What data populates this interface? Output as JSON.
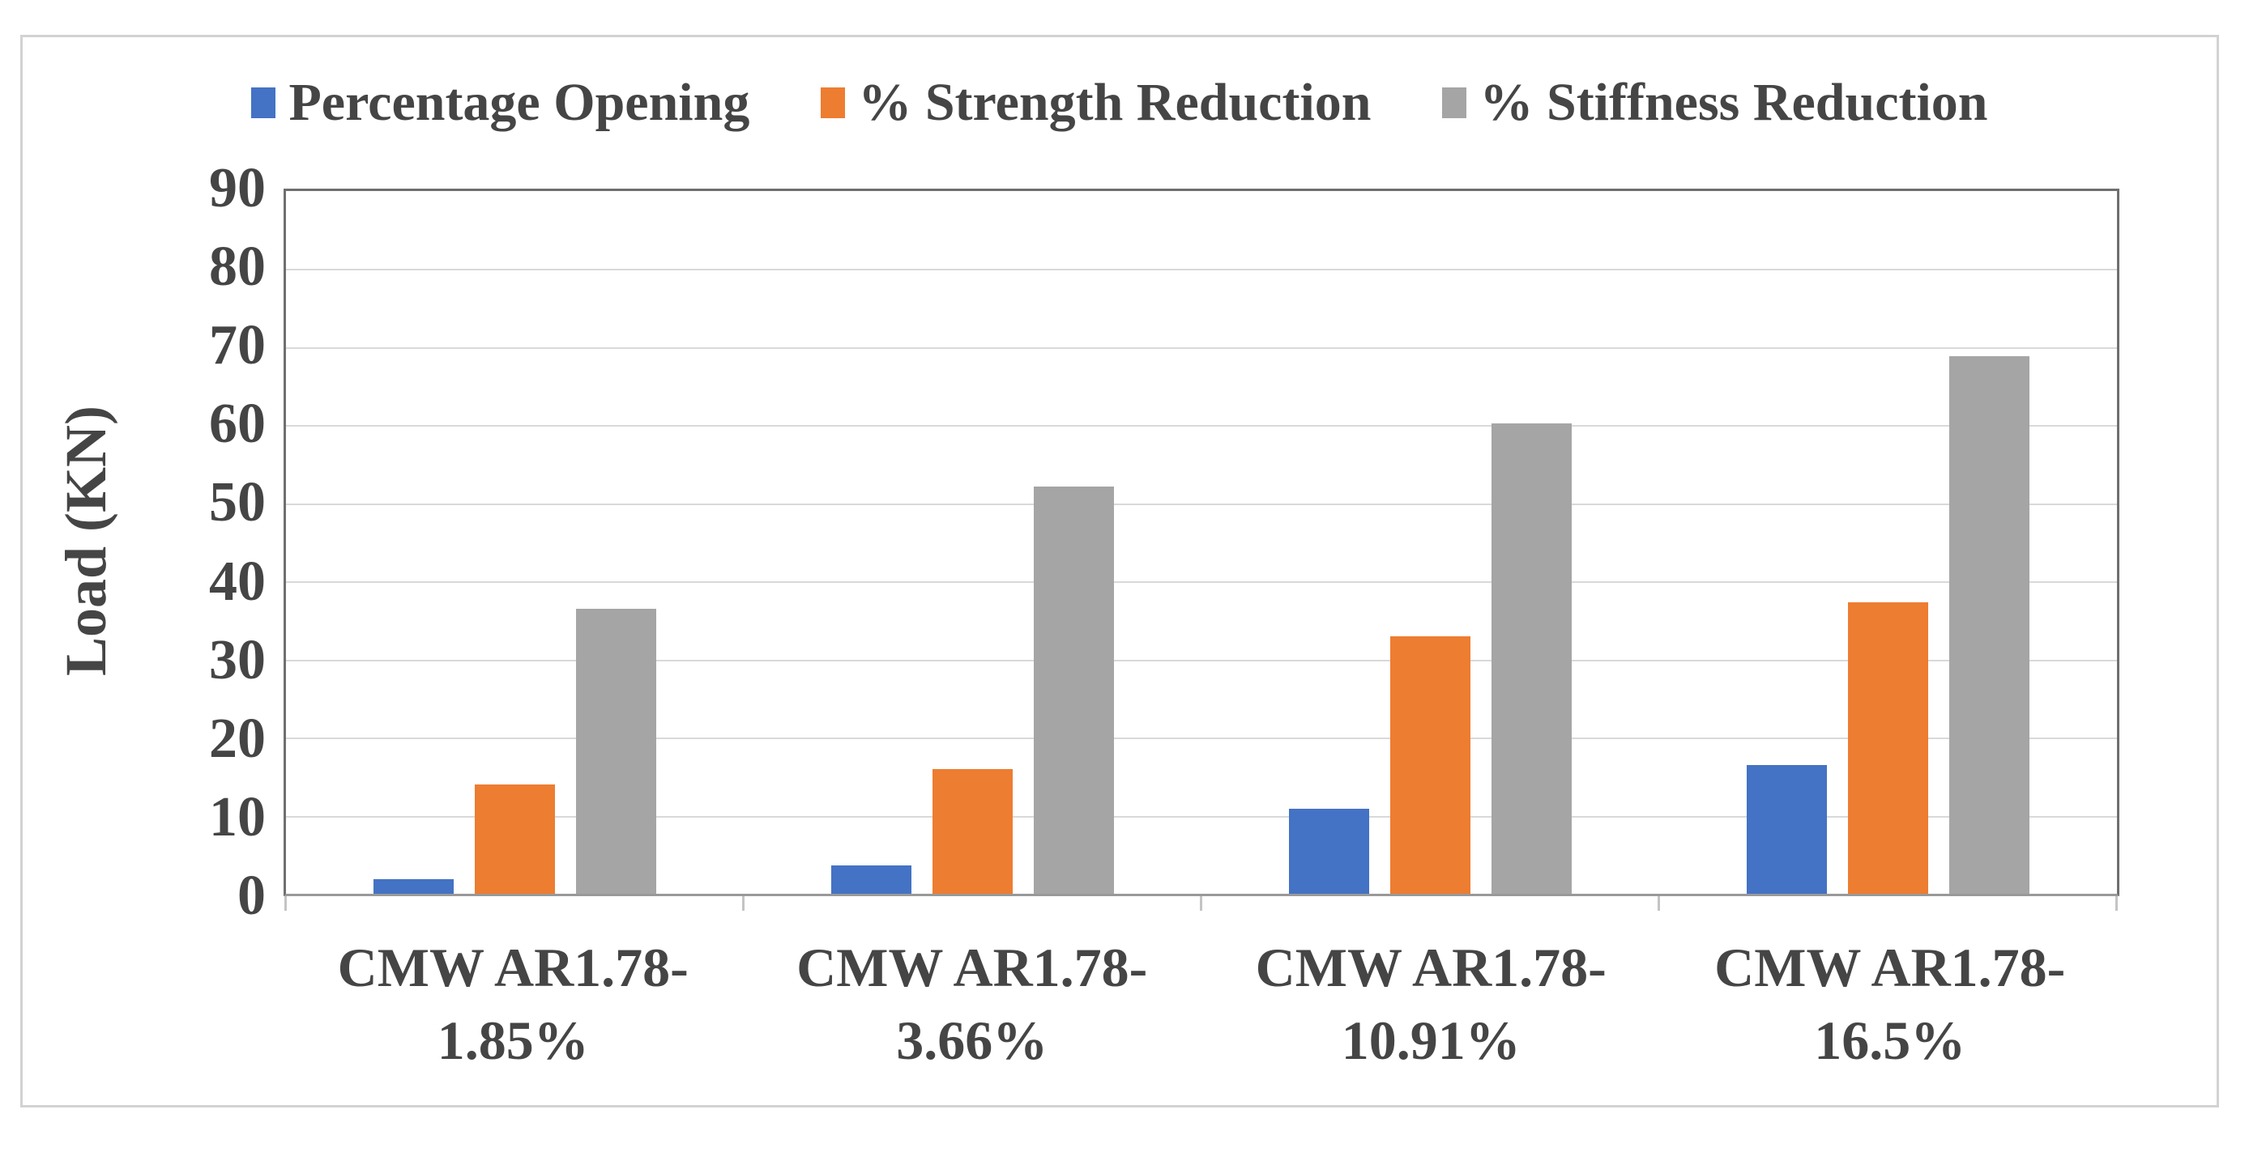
{
  "figure": {
    "background": "#ffffff",
    "border_color": "#d2d2d2",
    "text_color": "#454545"
  },
  "chart_data": {
    "type": "bar",
    "title": "",
    "xlabel": "",
    "ylabel": "Load (KN)",
    "ylim": [
      0,
      90
    ],
    "yticks": [
      0,
      10,
      20,
      30,
      40,
      50,
      60,
      70,
      80,
      90
    ],
    "grid": true,
    "gridline_color": "#d9d9d9",
    "axis_line_color": "#6f6f6f",
    "legend_position": "top",
    "categories": [
      "CMW AR1.78-1.85%",
      "CMW AR1.78-3.66%",
      "CMW AR1.78-10.91%",
      "CMW AR1.78-16.5%"
    ],
    "series": [
      {
        "name": "Percentage Opening",
        "color": "#4472C4",
        "values": [
          1.85,
          3.66,
          10.91,
          16.5
        ]
      },
      {
        "name": "% Strength Reduction",
        "color": "#ED7D31",
        "values": [
          14,
          16,
          33,
          37.3
        ]
      },
      {
        "name": "% Stiffness Reduction",
        "color": "#A5A5A5",
        "values": [
          36.5,
          52.2,
          60.2,
          68.8
        ]
      }
    ]
  }
}
